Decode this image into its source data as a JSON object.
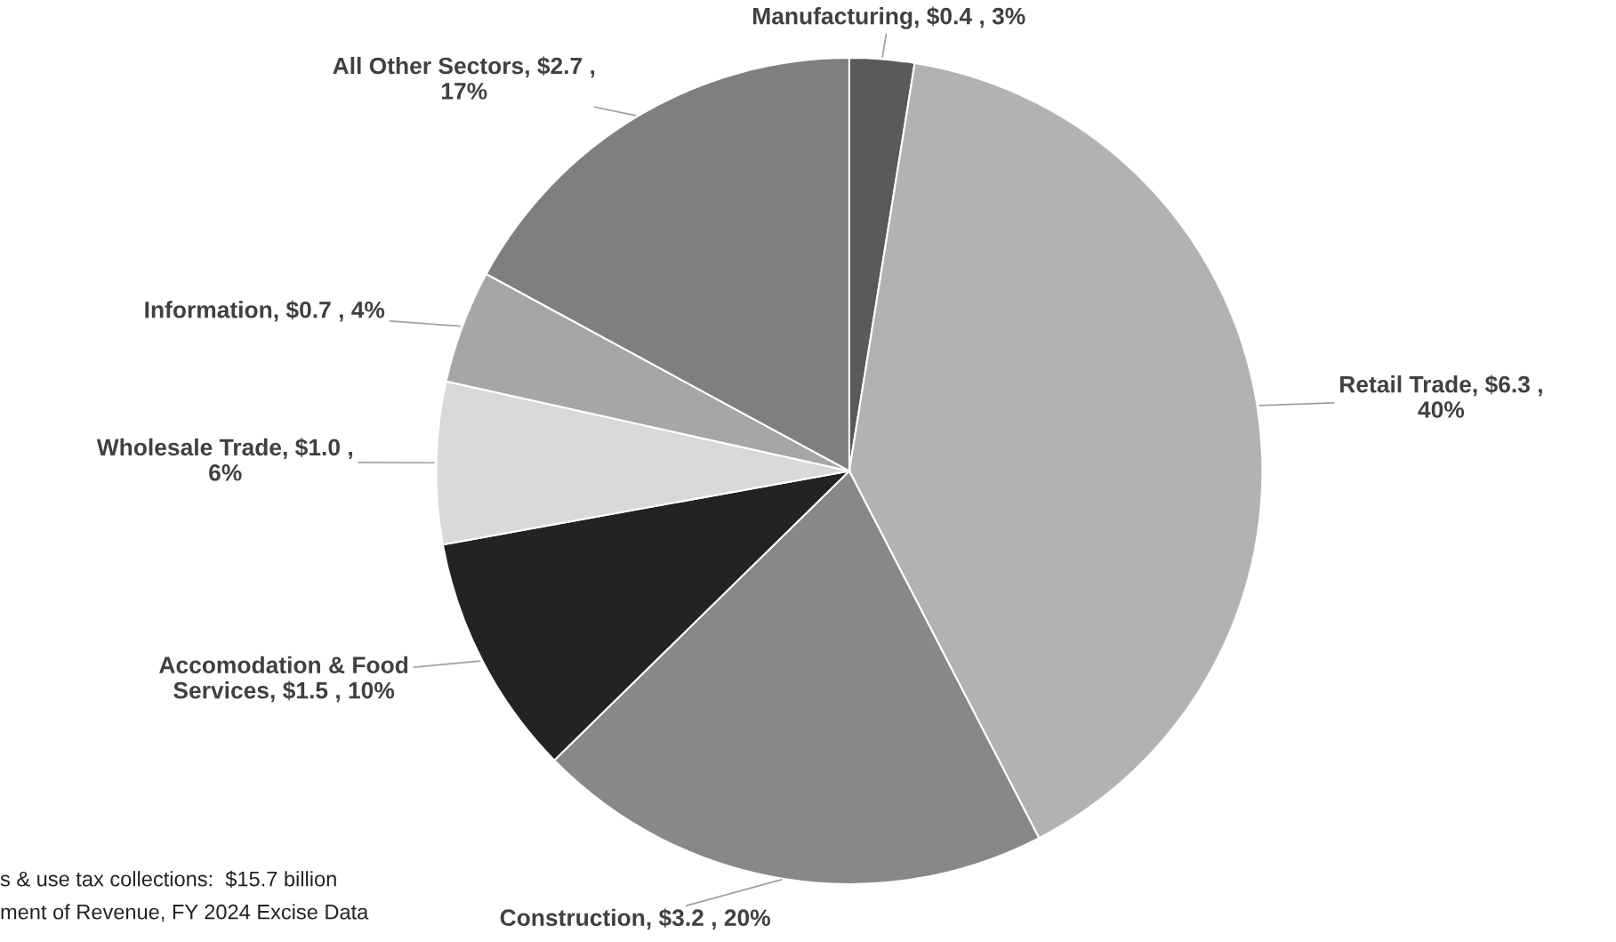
{
  "chart_data": {
    "type": "pie",
    "categories": [
      "Manufacturing",
      "Retail Trade",
      "Construction",
      "Accomodation & Food Services",
      "Wholesale Trade",
      "Information",
      "All Other Sectors"
    ],
    "values": [
      0.4,
      6.3,
      3.2,
      1.5,
      1.0,
      0.7,
      2.7
    ],
    "value_labels": [
      "$0.4 , 3%",
      "$6.3 , 40%",
      "$3.2 , 20%",
      "$1.5 , 10%",
      "$1.0 , 6%",
      "$0.7 , 4%",
      "$2.7 , 17%"
    ],
    "colors": [
      "#5a5a5a",
      "#b2b2b2",
      "#888888",
      "#232323",
      "#d9d9d9",
      "#a6a6a6",
      "#7f7f7f"
    ],
    "annotations": [
      "s & use tax collections:  $15.7 billion",
      "ment of Revenue, FY 2024 Excise Data"
    ],
    "legend": false
  }
}
